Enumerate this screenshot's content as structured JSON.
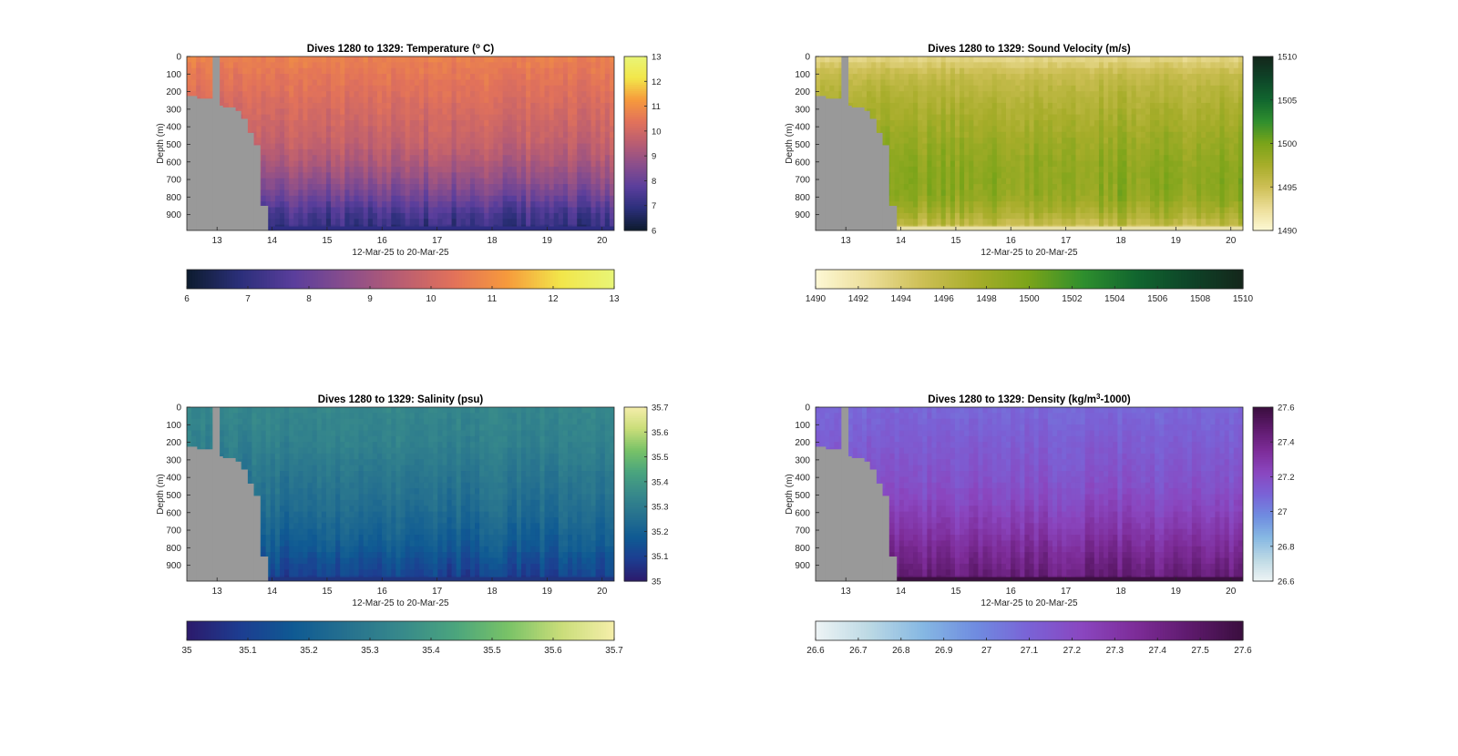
{
  "chart_data": [
    {
      "type": "heatmap",
      "title": "Dives 1280 to 1329: Temperature (°C)",
      "title_text": "Dives 1280 to 1329: Temperature (",
      "title_sup": "o",
      "title_tail": " C)",
      "xlabel": "12-Mar-25 to 20-Mar-25",
      "ylabel": "Depth (m)",
      "xlim": [
        12.45,
        20.22
      ],
      "ylim": [
        0,
        990
      ],
      "x_ticks": [
        "13",
        "14",
        "15",
        "16",
        "17",
        "18",
        "19",
        "20"
      ],
      "y_ticks": [
        "0",
        "100",
        "200",
        "300",
        "400",
        "500",
        "600",
        "700",
        "800",
        "900"
      ],
      "colorbar_range": [
        6,
        13
      ],
      "colorbar_ticks": [
        "6",
        "7",
        "8",
        "9",
        "10",
        "11",
        "12",
        "13"
      ],
      "horizontal_colorbar_ticks": [
        "6",
        "7",
        "8",
        "9",
        "10",
        "11",
        "12",
        "13"
      ],
      "colormap": [
        "#0d1b2e",
        "#2b2f7a",
        "#5a3e9c",
        "#8a4e8c",
        "#b95d72",
        "#e2725a",
        "#f69a3c",
        "#f2e64a",
        "#e8f577"
      ],
      "profile_values": [
        10.7,
        10.5,
        10.3,
        10.1,
        9.9,
        9.7,
        9.3,
        8.8,
        8.2,
        7.4,
        7.0
      ],
      "bottom_fill": "#2e2d82",
      "mask_color": "#999999"
    },
    {
      "type": "heatmap",
      "title": "Dives 1280 to 1329: Sound Velocity (m/s)",
      "title_text": "Dives 1280 to 1329: Sound Velocity (m/s)",
      "title_sup": "",
      "title_tail": "",
      "xlabel": "12-Mar-25 to 20-Mar-25",
      "ylabel": "Depth (m)",
      "xlim": [
        12.45,
        20.22
      ],
      "ylim": [
        0,
        990
      ],
      "x_ticks": [
        "13",
        "14",
        "15",
        "16",
        "17",
        "18",
        "19",
        "20"
      ],
      "y_ticks": [
        "0",
        "100",
        "200",
        "300",
        "400",
        "500",
        "600",
        "700",
        "800",
        "900"
      ],
      "colorbar_range": [
        1490,
        1510
      ],
      "colorbar_ticks": [
        "1490",
        "1495",
        "1500",
        "1505",
        "1510"
      ],
      "horizontal_colorbar_ticks": [
        "1490",
        "1492",
        "1494",
        "1496",
        "1498",
        "1500",
        "1502",
        "1504",
        "1506",
        "1508",
        "1510"
      ],
      "colormap": [
        "#fdf8d4",
        "#ecde98",
        "#cdbf55",
        "#a7ad2a",
        "#7aa419",
        "#2f8f2e",
        "#11662f",
        "#0e4428",
        "#14261b"
      ],
      "profile_values": [
        1493.0,
        1495.5,
        1496.5,
        1497.2,
        1497.8,
        1498.4,
        1498.9,
        1499.2,
        1499.0,
        1497.6,
        1495.0
      ],
      "bottom_fill": "#e8e0a8",
      "mask_color": "#999999"
    },
    {
      "type": "heatmap",
      "title": "Dives 1280 to 1329: Salinity (psu)",
      "title_text": "Dives 1280 to 1329: Salinity (psu)",
      "title_sup": "",
      "title_tail": "",
      "xlabel": "12-Mar-25 to 20-Mar-25",
      "ylabel": "Depth (m)",
      "xlim": [
        12.45,
        20.22
      ],
      "ylim": [
        0,
        990
      ],
      "x_ticks": [
        "13",
        "14",
        "15",
        "16",
        "17",
        "18",
        "19",
        "20"
      ],
      "y_ticks": [
        "0",
        "100",
        "200",
        "300",
        "400",
        "500",
        "600",
        "700",
        "800",
        "900"
      ],
      "colorbar_range": [
        35,
        35.7
      ],
      "colorbar_ticks": [
        "35",
        "35.1",
        "35.2",
        "35.3",
        "35.4",
        "35.5",
        "35.6",
        "35.7"
      ],
      "horizontal_colorbar_ticks": [
        "35",
        "35.1",
        "35.2",
        "35.3",
        "35.4",
        "35.5",
        "35.6",
        "35.7"
      ],
      "colormap": [
        "#2c1a6b",
        "#1d3d91",
        "#0f5a93",
        "#26718f",
        "#37898b",
        "#4aa47e",
        "#78c267",
        "#c9dd79",
        "#f5eeaa"
      ],
      "profile_values": [
        35.34,
        35.33,
        35.32,
        35.3,
        35.28,
        35.26,
        35.24,
        35.21,
        35.18,
        35.13,
        35.09
      ],
      "bottom_fill": "#20357f",
      "mask_color": "#999999"
    },
    {
      "type": "heatmap",
      "title": "Dives 1280 to 1329: Density (kg/m3-1000)",
      "title_text": "Dives 1280 to 1329: Density (kg/m",
      "title_sup": "3",
      "title_tail": "-1000)",
      "xlabel": "12-Mar-25 to 20-Mar-25",
      "ylabel": "Depth (m)",
      "xlim": [
        12.45,
        20.22
      ],
      "ylim": [
        0,
        990
      ],
      "x_ticks": [
        "13",
        "14",
        "15",
        "16",
        "17",
        "18",
        "19",
        "20"
      ],
      "y_ticks": [
        "0",
        "100",
        "200",
        "300",
        "400",
        "500",
        "600",
        "700",
        "800",
        "900"
      ],
      "colorbar_range": [
        26.6,
        27.6
      ],
      "colorbar_ticks": [
        "27.6",
        "27.4",
        "27.2",
        "27",
        "26.8",
        "26.6"
      ],
      "horizontal_colorbar_ticks": [
        "26.6",
        "26.7",
        "26.8",
        "26.9",
        "27",
        "27.1",
        "27.2",
        "27.3",
        "27.4",
        "27.5",
        "27.6"
      ],
      "colormap": [
        "#eef4f5",
        "#bcd9e4",
        "#86b8e3",
        "#6f8ce0",
        "#7a62d6",
        "#8a46bf",
        "#7d2c98",
        "#5e1a6d",
        "#3a0e3e"
      ],
      "profile_values": [
        27.08,
        27.1,
        27.12,
        27.14,
        27.16,
        27.19,
        27.23,
        27.28,
        27.34,
        27.4,
        27.45
      ],
      "bottom_fill": "#3b0f40",
      "mask_color": "#999999"
    }
  ]
}
